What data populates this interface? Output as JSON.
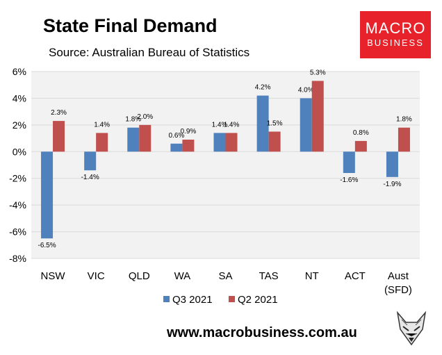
{
  "header": {
    "title": "State Final Demand",
    "source": "Source: Australian Bureau of Statistics"
  },
  "logo": {
    "line1": "MACRO",
    "line2": "BUSINESS"
  },
  "footer": {
    "url": "www.macrobusiness.com.au"
  },
  "colors": {
    "q3": "#4f81bd",
    "q2": "#c0504d",
    "plot_bg": "#f2f2f2",
    "grid": "#d9d9d9",
    "logo_bg": "#e8222a"
  },
  "chart_data": {
    "type": "bar",
    "title": "State Final Demand",
    "xlabel": "",
    "ylabel": "",
    "categories": [
      "NSW",
      "VIC",
      "QLD",
      "WA",
      "SA",
      "TAS",
      "NT",
      "ACT",
      "Aust\n(SFD)"
    ],
    "series": [
      {
        "name": "Q3 2021",
        "color": "#4f81bd",
        "values": [
          -6.5,
          -1.4,
          1.8,
          0.6,
          1.4,
          4.2,
          4.0,
          -1.6,
          -1.9
        ]
      },
      {
        "name": "Q2 2021",
        "color": "#c0504d",
        "values": [
          2.3,
          1.4,
          2.0,
          0.9,
          1.4,
          1.5,
          5.3,
          0.8,
          1.8
        ]
      }
    ],
    "ylim": [
      -8,
      6
    ],
    "yticks": [
      "6%",
      "4%",
      "2%",
      "0%",
      "-2%",
      "-4%",
      "-6%",
      "-8%"
    ],
    "unit": "%",
    "grid": true,
    "legend_position": "bottom"
  }
}
